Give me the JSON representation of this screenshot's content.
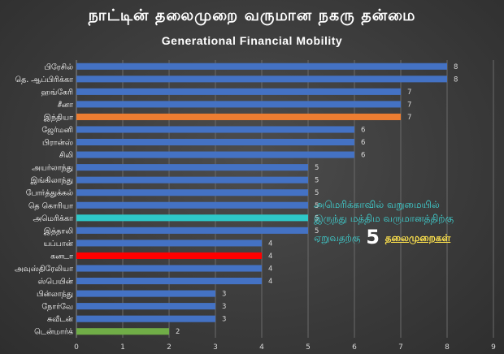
{
  "title": "நாட்டின் தலைமுறை வருமான நகரு தன்மை",
  "subtitle": "Generational Financial Mobility",
  "annotation": {
    "line1": "அமெரிக்காவில் வறுமையில்",
    "line2": "இருந்து மத்திம வருமானத்திற்கு",
    "line3_prefix": "ஏறுவதற்கு",
    "line3_number": "5",
    "line3_suffix": "தலைமுறைகள்"
  },
  "colors": {
    "default_bar": "#4472c4",
    "highlight_india": "#ed7d31",
    "highlight_usa": "#2ec8c8",
    "highlight_canada": "#ff0000",
    "highlight_denmark": "#70ad47"
  },
  "chart_data": {
    "type": "bar",
    "orientation": "horizontal",
    "categories": [
      "பிரேசில்",
      "தெ. ஆப்பிரிக்கா",
      "ஹங்கேரி",
      "சீனா",
      "இந்தியா",
      "ஜேர்மனி",
      "பிரான்ஸ்",
      "சிலி",
      "அயர்லாந்து",
      "இங்கிலாந்து",
      "போர்த்துக்கல்",
      "தெ கொரியா",
      "அமெரிக்கா",
      "இத்தாலி",
      "யப்பான்",
      "கனடா",
      "அவுஸ்திரேலியா",
      "ஸ்பெயின்",
      "பின்லாந்து",
      "நோர்வே",
      "சுவீடன்",
      "டென்மார்க்"
    ],
    "values": [
      8,
      8,
      7,
      7,
      7,
      6,
      6,
      6,
      5,
      5,
      5,
      5,
      5,
      5,
      4,
      4,
      4,
      4,
      3,
      3,
      3,
      2
    ],
    "bar_colors": [
      "#4472c4",
      "#4472c4",
      "#4472c4",
      "#4472c4",
      "#ed7d31",
      "#4472c4",
      "#4472c4",
      "#4472c4",
      "#4472c4",
      "#4472c4",
      "#4472c4",
      "#4472c4",
      "#2ec8c8",
      "#4472c4",
      "#4472c4",
      "#ff0000",
      "#4472c4",
      "#4472c4",
      "#4472c4",
      "#4472c4",
      "#4472c4",
      "#70ad47"
    ],
    "xlim": [
      0,
      9
    ],
    "x_ticks": [
      0,
      1,
      2,
      3,
      4,
      5,
      6,
      7,
      8,
      9
    ],
    "gridlines": true,
    "data_labels": true
  }
}
